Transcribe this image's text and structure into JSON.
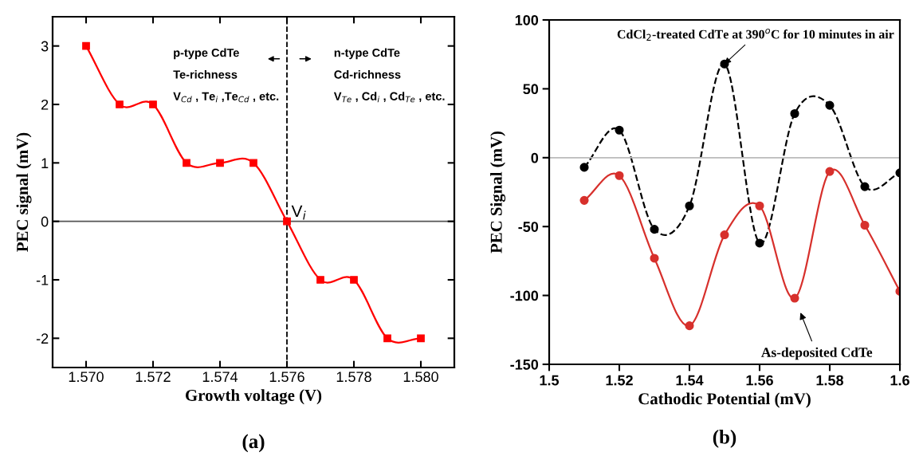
{
  "chart_data": [
    {
      "type": "line",
      "xlabel": "Growth voltage (V)",
      "ylabel": "PEC signal (mV)",
      "x": [
        1.57,
        1.571,
        1.572,
        1.573,
        1.574,
        1.575,
        1.576,
        1.577,
        1.578,
        1.579,
        1.58
      ],
      "series": [
        {
          "color": "#ff0000",
          "values": [
            3,
            2,
            2,
            1,
            1,
            1,
            0,
            -1,
            -1,
            -2,
            -2
          ],
          "marker": "square",
          "line_style": "solid"
        }
      ],
      "xlim": [
        1.569,
        1.581
      ],
      "ylim": [
        -2.5,
        3.5
      ],
      "xticks": [
        {
          "value": 1.57,
          "label": "1.570"
        },
        {
          "value": 1.572,
          "label": "1.572"
        },
        {
          "value": 1.574,
          "label": "1.574"
        },
        {
          "value": 1.576,
          "label": "1.576"
        },
        {
          "value": 1.578,
          "label": "1.578"
        },
        {
          "value": 1.58,
          "label": "1.580"
        }
      ],
      "yticks": [
        -2,
        -1,
        0,
        1,
        2,
        3
      ],
      "ref_lines": [
        {
          "axis": "y",
          "value": 0,
          "color": "#555555",
          "line_style": "solid"
        },
        {
          "axis": "x",
          "value": 1.576,
          "label": "V$_{i}$",
          "color": "#000000",
          "line_style": "dashed"
        }
      ],
      "annotations": [
        "p-type CdTe\nTe-richness\nV$_{Cd}$ , Te$_{i}$ ,Te$_{Cd}$ , etc.",
        "n-type CdTe\nCd-richness\nV$_{Te}$ , Cd$_{i}$ , Cd$_{Te}$ , etc.",
        "(a)"
      ],
      "grid": false
    },
    {
      "type": "line",
      "xlabel": "Cathodic Potential (mV)",
      "ylabel": "PEC Signal (mV)",
      "x": [
        1.51,
        1.52,
        1.53,
        1.54,
        1.55,
        1.56,
        1.57,
        1.58,
        1.59,
        1.6
      ],
      "series": [
        {
          "color": "#000000",
          "values": [
            -7,
            20,
            -52,
            -35,
            68,
            -62,
            32,
            38,
            -21,
            -11
          ],
          "marker": "circle",
          "line_style": "dashed"
        },
        {
          "color": "#d7302c",
          "values": [
            -31,
            -13,
            -73,
            -122,
            -56,
            -35,
            -102,
            -10,
            -49,
            -97
          ],
          "marker": "circle",
          "line_style": "solid"
        }
      ],
      "xlim": [
        1.5,
        1.6
      ],
      "ylim": [
        -150,
        100
      ],
      "xticks": [
        1.5,
        1.52,
        1.54,
        1.56,
        1.58,
        1.6
      ],
      "yticks": [
        -150,
        -100,
        -50,
        0,
        50,
        100
      ],
      "ref_lines": [
        {
          "axis": "y",
          "value": 0,
          "color": "#bbbbbb",
          "line_style": "solid"
        }
      ],
      "annotations": [
        {
          "text": "CdCl$_{2}$-treated CdTe at 390$^{o}$C for 10 minutes in air",
          "x": 1.55,
          "y": 68
        },
        "As-deposited CdTe",
        "(b)"
      ],
      "grid": false
    }
  ]
}
